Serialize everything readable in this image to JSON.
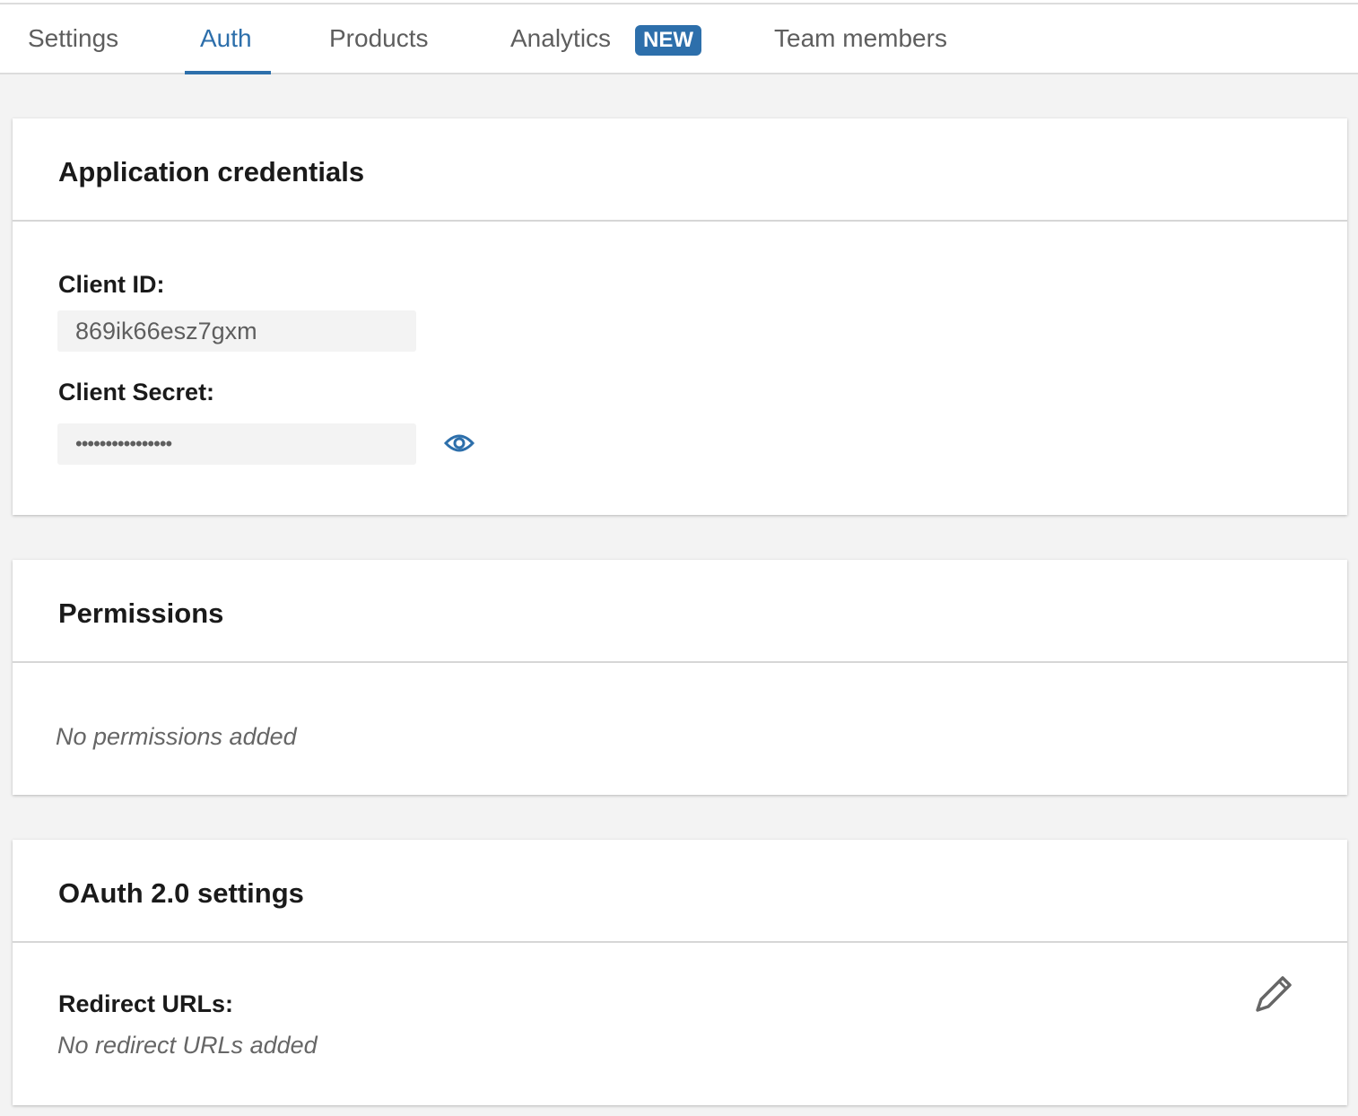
{
  "tabs": {
    "items": [
      {
        "label": "Settings"
      },
      {
        "label": "Auth",
        "active": true
      },
      {
        "label": "Products"
      },
      {
        "label": "Analytics",
        "badge": "NEW"
      },
      {
        "label": "Team members"
      }
    ]
  },
  "credentials": {
    "title": "Application credentials",
    "client_id_label": "Client ID:",
    "client_id_value": "869ik66esz7gxm",
    "client_secret_label": "Client Secret:",
    "client_secret_value": "••••••••••••••••",
    "reveal_icon": "eye-icon"
  },
  "permissions": {
    "title": "Permissions",
    "empty": "No permissions added"
  },
  "oauth": {
    "title": "OAuth 2.0 settings",
    "redirect_label": "Redirect URLs:",
    "redirect_empty": "No redirect URLs added",
    "edit_icon": "pencil-icon"
  },
  "colors": {
    "accent": "#2d6fab",
    "background": "#f3f3f3"
  }
}
